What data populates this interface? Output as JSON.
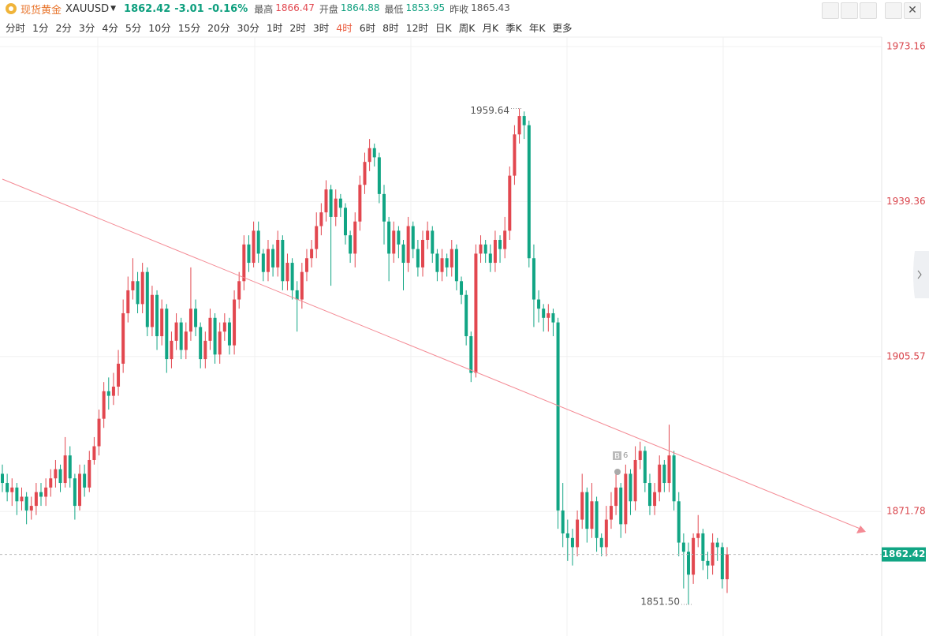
{
  "header": {
    "name": "现货黄金",
    "symbol": "XAUUSD",
    "price": 1862.42,
    "change": -3.01,
    "change_pct": {
      "value": -0.16,
      "label": "-0.16%"
    },
    "stats": [
      {
        "label": "最高",
        "value": 1866.47,
        "tone": "up"
      },
      {
        "label": "开盘",
        "value": 1864.88,
        "tone": "down"
      },
      {
        "label": "最低",
        "value": 1853.95,
        "tone": "down"
      },
      {
        "label": "昨收",
        "value": 1865.43,
        "tone": "flat"
      }
    ]
  },
  "tabs": [
    {
      "label": "分时"
    },
    {
      "label": "1分"
    },
    {
      "label": "2分"
    },
    {
      "label": "3分"
    },
    {
      "label": "4分"
    },
    {
      "label": "5分"
    },
    {
      "label": "10分"
    },
    {
      "label": "15分"
    },
    {
      "label": "20分"
    },
    {
      "label": "30分"
    },
    {
      "label": "1时"
    },
    {
      "label": "2时"
    },
    {
      "label": "3时"
    },
    {
      "label": "4时",
      "active": true
    },
    {
      "label": "6时"
    },
    {
      "label": "8时"
    },
    {
      "label": "12时"
    },
    {
      "label": "日K"
    },
    {
      "label": "周K"
    },
    {
      "label": "月K"
    },
    {
      "label": "季K"
    },
    {
      "label": "年K"
    },
    {
      "label": "更多"
    }
  ],
  "chart_data": {
    "type": "candlestick",
    "up_color": "#e2474f",
    "down_color": "#11a584",
    "ylim": [
      1844.8,
      1974.7
    ],
    "yticks": [
      1973.16,
      1939.36,
      1905.57,
      1871.78
    ],
    "grid": true,
    "annotations": [
      {
        "value": 1959.64,
        "label": "1959.64"
      },
      {
        "value": 1851.5,
        "label": "1851.50"
      }
    ],
    "marker": {
      "label": "B",
      "count": 6
    },
    "ohlc": [
      [
        1880,
        1882,
        1876,
        1878
      ],
      [
        1878,
        1880,
        1874,
        1876
      ],
      [
        1876,
        1879,
        1873,
        1877
      ],
      [
        1877,
        1878,
        1871,
        1874
      ],
      [
        1874,
        1877,
        1872,
        1875
      ],
      [
        1875,
        1876,
        1869,
        1872
      ],
      [
        1872,
        1875,
        1870,
        1873
      ],
      [
        1873,
        1878,
        1871,
        1876
      ],
      [
        1876,
        1878,
        1873,
        1875
      ],
      [
        1875,
        1879,
        1873,
        1877
      ],
      [
        1877,
        1881,
        1875,
        1879
      ],
      [
        1879,
        1883,
        1877,
        1881
      ],
      [
        1881,
        1882,
        1876,
        1878
      ],
      [
        1878,
        1888,
        1877,
        1884
      ],
      [
        1884,
        1886,
        1877,
        1879
      ],
      [
        1879,
        1880,
        1870,
        1873
      ],
      [
        1873,
        1882,
        1872,
        1880
      ],
      [
        1880,
        1882,
        1875,
        1877
      ],
      [
        1877,
        1885,
        1876,
        1883
      ],
      [
        1883,
        1888,
        1882,
        1886
      ],
      [
        1886,
        1894,
        1884,
        1892
      ],
      [
        1892,
        1900,
        1890,
        1898
      ],
      [
        1898,
        1901,
        1894,
        1897
      ],
      [
        1897,
        1902,
        1895,
        1899
      ],
      [
        1899,
        1907,
        1897,
        1904
      ],
      [
        1904,
        1918,
        1902,
        1915
      ],
      [
        1915,
        1923,
        1913,
        1920
      ],
      [
        1920,
        1927,
        1918,
        1922
      ],
      [
        1922,
        1924,
        1915,
        1917
      ],
      [
        1917,
        1926,
        1915,
        1924
      ],
      [
        1924,
        1925,
        1910,
        1912
      ],
      [
        1912,
        1921,
        1910,
        1919
      ],
      [
        1919,
        1920,
        1907,
        1910
      ],
      [
        1910,
        1918,
        1908,
        1916
      ],
      [
        1916,
        1917,
        1902,
        1905
      ],
      [
        1905,
        1911,
        1903,
        1909
      ],
      [
        1909,
        1915,
        1907,
        1913
      ],
      [
        1913,
        1914,
        1905,
        1907
      ],
      [
        1907,
        1913,
        1905,
        1911
      ],
      [
        1911,
        1925,
        1909,
        1916
      ],
      [
        1916,
        1918,
        1910,
        1912
      ],
      [
        1912,
        1913,
        1903,
        1905
      ],
      [
        1905,
        1911,
        1903,
        1909
      ],
      [
        1909,
        1916,
        1907,
        1914
      ],
      [
        1914,
        1915,
        1904,
        1906
      ],
      [
        1906,
        1913,
        1904,
        1911
      ],
      [
        1911,
        1915,
        1909,
        1913
      ],
      [
        1913,
        1914,
        1906,
        1908
      ],
      [
        1908,
        1920,
        1906,
        1918
      ],
      [
        1918,
        1924,
        1916,
        1922
      ],
      [
        1922,
        1932,
        1920,
        1930
      ],
      [
        1930,
        1932,
        1924,
        1926
      ],
      [
        1926,
        1935,
        1925,
        1933
      ],
      [
        1933,
        1935,
        1926,
        1928
      ],
      [
        1928,
        1929,
        1922,
        1924
      ],
      [
        1924,
        1931,
        1922,
        1929
      ],
      [
        1929,
        1930,
        1923,
        1925
      ],
      [
        1925,
        1933,
        1923,
        1931
      ],
      [
        1931,
        1932,
        1920,
        1922
      ],
      [
        1922,
        1928,
        1920,
        1926
      ],
      [
        1926,
        1927,
        1918,
        1920
      ],
      [
        1920,
        1922,
        1911,
        1918
      ],
      [
        1918,
        1926,
        1916,
        1924
      ],
      [
        1924,
        1929,
        1922,
        1927
      ],
      [
        1927,
        1931,
        1925,
        1929
      ],
      [
        1929,
        1937,
        1927,
        1934
      ],
      [
        1934,
        1939,
        1932,
        1937
      ],
      [
        1937,
        1944,
        1935,
        1942
      ],
      [
        1942,
        1943,
        1921,
        1936
      ],
      [
        1936,
        1942,
        1934,
        1940
      ],
      [
        1940,
        1941,
        1936,
        1938
      ],
      [
        1938,
        1939,
        1930,
        1932
      ],
      [
        1932,
        1933,
        1926,
        1928
      ],
      [
        1928,
        1937,
        1925,
        1935
      ],
      [
        1935,
        1945,
        1933,
        1943
      ],
      [
        1943,
        1950,
        1941,
        1948
      ],
      [
        1948,
        1953,
        1946,
        1951
      ],
      [
        1951,
        1952,
        1947,
        1949
      ],
      [
        1949,
        1950,
        1939,
        1941
      ],
      [
        1941,
        1943,
        1930,
        1935
      ],
      [
        1935,
        1936,
        1922,
        1928
      ],
      [
        1928,
        1935,
        1926,
        1933
      ],
      [
        1933,
        1934,
        1927,
        1930
      ],
      [
        1930,
        1931,
        1920,
        1926
      ],
      [
        1926,
        1936,
        1924,
        1934
      ],
      [
        1934,
        1935,
        1927,
        1929
      ],
      [
        1929,
        1931,
        1923,
        1925
      ],
      [
        1925,
        1933,
        1923,
        1931
      ],
      [
        1931,
        1935,
        1929,
        1933
      ],
      [
        1933,
        1934,
        1926,
        1928
      ],
      [
        1928,
        1929,
        1922,
        1924
      ],
      [
        1924,
        1929,
        1922,
        1927
      ],
      [
        1927,
        1928,
        1923,
        1925
      ],
      [
        1925,
        1931,
        1923,
        1929
      ],
      [
        1929,
        1930,
        1920,
        1922
      ],
      [
        1922,
        1923,
        1917,
        1919
      ],
      [
        1919,
        1920,
        1908,
        1910
      ],
      [
        1910,
        1911,
        1900,
        1902
      ],
      [
        1902,
        1930,
        1901,
        1928
      ],
      [
        1928,
        1932,
        1926,
        1930
      ],
      [
        1930,
        1931,
        1926,
        1928
      ],
      [
        1928,
        1930,
        1924,
        1926
      ],
      [
        1926,
        1933,
        1924,
        1931
      ],
      [
        1931,
        1932,
        1926,
        1929
      ],
      [
        1929,
        1936,
        1927,
        1933
      ],
      [
        1933,
        1947,
        1931,
        1945
      ],
      [
        1945,
        1956,
        1943,
        1954
      ],
      [
        1954,
        1959.64,
        1952,
        1958
      ],
      [
        1958,
        1959,
        1953,
        1956
      ],
      [
        1956,
        1957,
        1925,
        1927
      ],
      [
        1927,
        1930,
        1912,
        1918
      ],
      [
        1918,
        1920,
        1913,
        1916
      ],
      [
        1916,
        1917,
        1911,
        1914
      ],
      [
        1914,
        1917,
        1911,
        1915
      ],
      [
        1915,
        1916,
        1910,
        1913
      ],
      [
        1913,
        1914,
        1868,
        1872
      ],
      [
        1872,
        1878,
        1864,
        1867
      ],
      [
        1867,
        1870,
        1861,
        1866
      ],
      [
        1866,
        1868,
        1860,
        1864
      ],
      [
        1864,
        1872,
        1862,
        1870
      ],
      [
        1870,
        1880,
        1868,
        1876
      ],
      [
        1876,
        1877,
        1865,
        1868
      ],
      [
        1868,
        1878,
        1866,
        1874
      ],
      [
        1874,
        1875,
        1863,
        1866
      ],
      [
        1866,
        1867,
        1862,
        1864
      ],
      [
        1864,
        1873,
        1862,
        1870
      ],
      [
        1870,
        1876,
        1868,
        1873
      ],
      [
        1873,
        1880,
        1871,
        1877
      ],
      [
        1877,
        1878,
        1866,
        1869
      ],
      [
        1869,
        1882,
        1867,
        1880
      ],
      [
        1880,
        1881,
        1871,
        1874
      ],
      [
        1874,
        1886,
        1872,
        1883
      ],
      [
        1883,
        1887,
        1881,
        1885
      ],
      [
        1885,
        1886,
        1876,
        1878
      ],
      [
        1878,
        1880,
        1871,
        1873
      ],
      [
        1873,
        1878,
        1871,
        1876
      ],
      [
        1876,
        1884,
        1874,
        1882
      ],
      [
        1882,
        1883,
        1876,
        1878
      ],
      [
        1878,
        1890.7,
        1876,
        1884
      ],
      [
        1884,
        1885,
        1872,
        1874
      ],
      [
        1874,
        1876,
        1862,
        1865
      ],
      [
        1865,
        1867,
        1855,
        1863
      ],
      [
        1863,
        1865,
        1851.5,
        1858
      ],
      [
        1858,
        1867,
        1856,
        1866
      ],
      [
        1866,
        1871,
        1864,
        1867
      ],
      [
        1867,
        1868,
        1859,
        1861
      ],
      [
        1861,
        1863,
        1857,
        1860
      ],
      [
        1860,
        1867,
        1858,
        1865
      ],
      [
        1865,
        1866,
        1861,
        1864
      ],
      [
        1864,
        1865,
        1855,
        1857
      ],
      [
        1857,
        1864,
        1854,
        1862.42
      ]
    ]
  }
}
